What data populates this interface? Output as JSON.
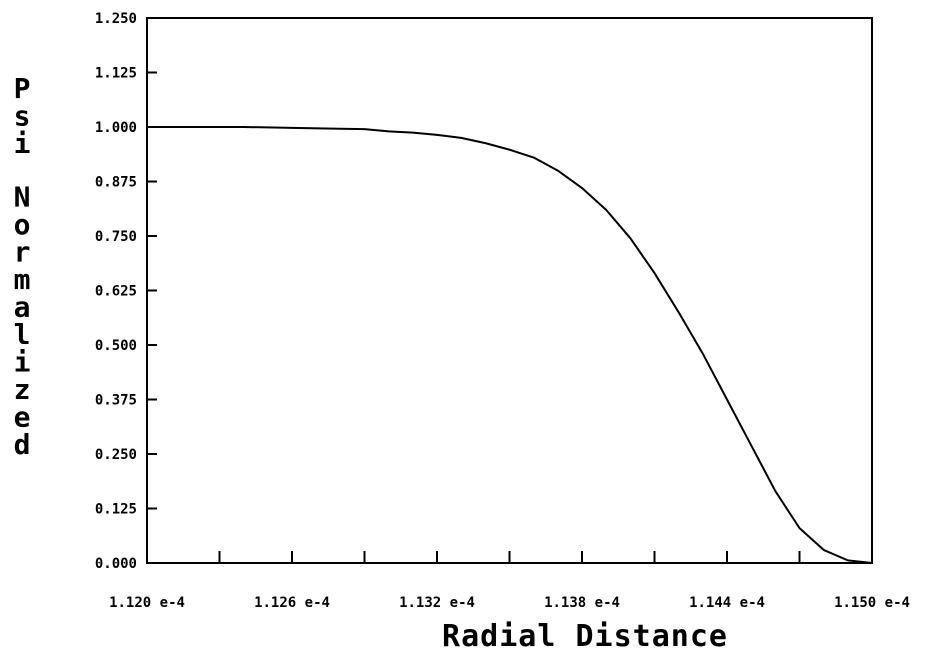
{
  "chart_data": {
    "type": "line",
    "title": "",
    "xlabel": "Radial Distance",
    "ylabel": "Psi Normalized",
    "xlim": [
      0.000112,
      0.000115
    ],
    "ylim": [
      0.0,
      1.25
    ],
    "x_ticks": [
      0.000112,
      0.0001126,
      0.0001132,
      0.0001138,
      0.0001144,
      0.000115
    ],
    "x_tick_labels": [
      "1.120 e-4",
      "1.126 e-4",
      "1.132 e-4",
      "1.138 e-4",
      "1.144 e-4",
      "1.150 e-4"
    ],
    "x_minor_ticks": [
      0.0001123,
      0.0001129,
      0.0001135,
      0.0001141,
      0.0001147
    ],
    "y_ticks": [
      0.0,
      0.125,
      0.25,
      0.375,
      0.5,
      0.625,
      0.75,
      0.875,
      1.0,
      1.125,
      1.25
    ],
    "y_tick_labels": [
      "0.000",
      "0.125",
      "0.250",
      "0.375",
      "0.500",
      "0.625",
      "0.750",
      "0.875",
      "1.000",
      "1.125",
      "1.250"
    ],
    "grid": false,
    "series": [
      {
        "color": "#000000",
        "x": [
          0.000112,
          0.0001122,
          0.0001124,
          0.0001126,
          0.0001128,
          0.0001129,
          0.000113,
          0.0001131,
          0.0001132,
          0.0001133,
          0.0001134,
          0.0001135,
          0.0001136,
          0.0001137,
          0.0001138,
          0.0001139,
          0.000114,
          0.0001141,
          0.0001142,
          0.0001143,
          0.0001144,
          0.0001145,
          0.0001146,
          0.0001147,
          0.0001148,
          0.0001149,
          0.000115
        ],
        "y": [
          1.0,
          1.0,
          1.0,
          0.998,
          0.996,
          0.995,
          0.99,
          0.987,
          0.982,
          0.975,
          0.963,
          0.948,
          0.93,
          0.9,
          0.86,
          0.81,
          0.745,
          0.665,
          0.575,
          0.48,
          0.375,
          0.27,
          0.165,
          0.08,
          0.03,
          0.006,
          0.0
        ]
      }
    ]
  }
}
